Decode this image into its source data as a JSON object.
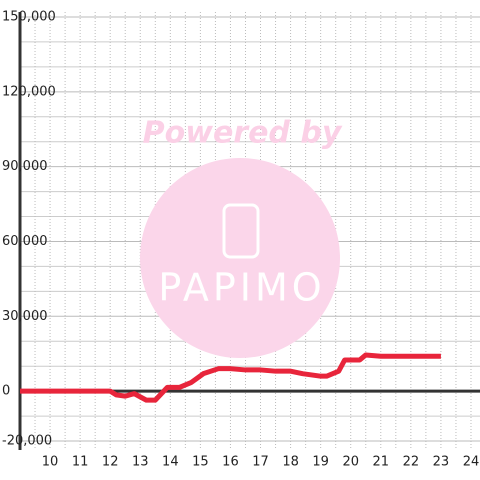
{
  "chart_data": {
    "type": "line",
    "watermark": {
      "text": "Powered by",
      "logo": "PAPIMO"
    },
    "x": [
      9,
      12,
      12.2,
      12.5,
      12.8,
      13.2,
      13.5,
      13.9,
      14.3,
      14.7,
      15.1,
      15.6,
      16,
      16.5,
      17,
      17.5,
      18,
      18.4,
      18.7,
      19,
      19.2,
      19.6,
      19.8,
      20.3,
      20.5,
      21,
      23
    ],
    "series": [
      {
        "color": "#e8253b",
        "values": [
          0,
          0,
          -1500,
          -2000,
          -1000,
          -3600,
          -3600,
          1500,
          1500,
          3500,
          7000,
          9000,
          9000,
          8500,
          8500,
          8000,
          8000,
          7000,
          6500,
          6000,
          6000,
          8000,
          12500,
          12500,
          14500,
          14000,
          14000
        ]
      }
    ],
    "xlim": [
      9,
      24.3
    ],
    "xticks": [
      10,
      11,
      12,
      13,
      14,
      15,
      16,
      17,
      18,
      19,
      20,
      21,
      22,
      23,
      24
    ],
    "x_minor_ticks": [
      9.5,
      10.5,
      11.5,
      12.5,
      13.5,
      14.5,
      15.5,
      16.5,
      17.5,
      18.5,
      19.5,
      20.5,
      21.5,
      22.5,
      23.5
    ],
    "ylim": [
      -23600,
      152000
    ],
    "yticks": [
      {
        "value": -20000,
        "label": "-20,000"
      },
      0,
      {
        "value": 30000,
        "label": "30,000"
      },
      {
        "value": 60000,
        "label": "60,000"
      },
      {
        "value": 90000,
        "label": "90,000"
      },
      {
        "value": 120000,
        "label": "120,000"
      },
      {
        "value": 150000,
        "label": "150,000"
      }
    ],
    "y_minor_ticks": [
      -10000,
      10000,
      20000,
      40000,
      50000,
      70000,
      80000,
      100000,
      110000,
      130000,
      140000
    ],
    "grid": true
  }
}
